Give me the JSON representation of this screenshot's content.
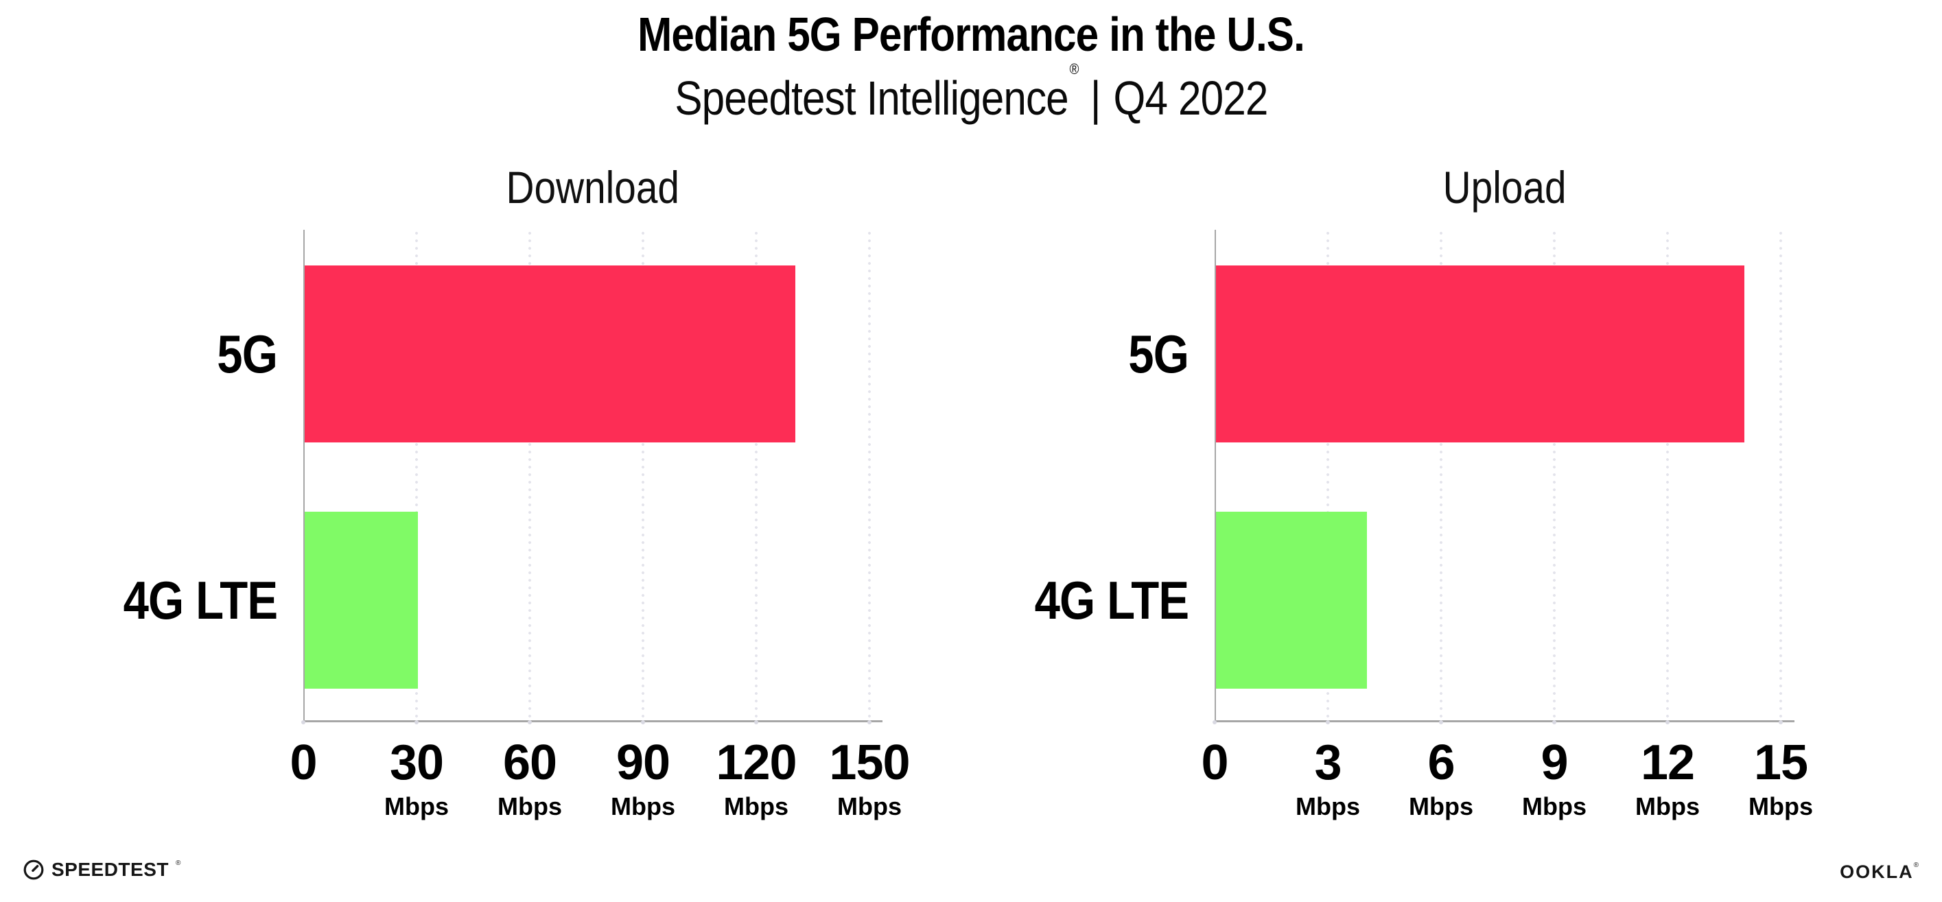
{
  "header": {
    "title": "Median 5G Performance in the U.S.",
    "subtitle_brand": "Speedtest Intelligence",
    "subtitle_reg": "®",
    "subtitle_separator": "|",
    "subtitle_period": "Q4 2022"
  },
  "colors": {
    "bar_5g": "#FD2D55",
    "bar_4g_lte": "#80FA66",
    "gridline": "#E3E3EB",
    "axis": "#A6A6A6",
    "text": "#000000"
  },
  "chart_data": [
    {
      "type": "bar",
      "orientation": "horizontal",
      "title": "Download",
      "categories": [
        "5G",
        "4G LTE"
      ],
      "values": [
        130,
        30
      ],
      "unit": "Mbps",
      "xlim": [
        0,
        150
      ],
      "ticks": [
        0,
        30,
        60,
        90,
        120,
        150
      ],
      "bar_colors": [
        "#FD2D55",
        "#80FA66"
      ],
      "grid": "dotted-vertical",
      "legend": "none"
    },
    {
      "type": "bar",
      "orientation": "horizontal",
      "title": "Upload",
      "categories": [
        "5G",
        "4G LTE"
      ],
      "values": [
        14,
        4
      ],
      "unit": "Mbps",
      "xlim": [
        0,
        15
      ],
      "ticks": [
        0,
        3,
        6,
        9,
        12,
        15
      ],
      "bar_colors": [
        "#FD2D55",
        "#80FA66"
      ],
      "grid": "dotted-vertical",
      "legend": "none"
    }
  ],
  "footer": {
    "speedtest_logo_text": "SPEEDTEST",
    "speedtest_reg": "®",
    "ookla_logo_text": "OOKLA",
    "ookla_reg": "®"
  }
}
